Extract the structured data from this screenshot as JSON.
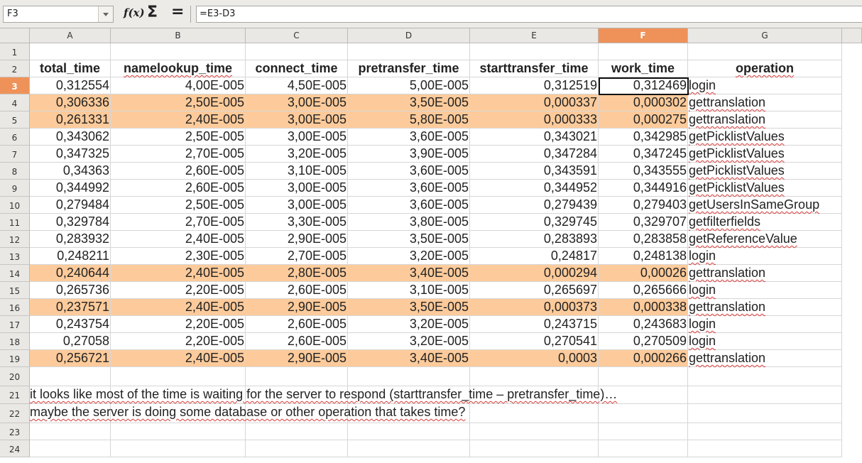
{
  "toolbar": {
    "name_box": "F3",
    "fx_label": "f(x)",
    "sum_label": "Σ",
    "equals_label": "=",
    "formula": "=E3-D3"
  },
  "columns": [
    "A",
    "B",
    "C",
    "D",
    "E",
    "F",
    "G"
  ],
  "selected_column": "F",
  "rows": [
    "1",
    "2",
    "3",
    "4",
    "5",
    "6",
    "7",
    "8",
    "9",
    "10",
    "11",
    "12",
    "13",
    "14",
    "15",
    "16",
    "17",
    "18",
    "19",
    "20",
    "21",
    "22",
    "23",
    "24"
  ],
  "selected_row": "3",
  "headers": [
    "total_time",
    "namelookup_time",
    "connect_time",
    "pretransfer_time",
    "starttransfer_time",
    "work_time",
    "operation"
  ],
  "data": [
    {
      "cells": [
        "0,312554",
        "4,00E-005",
        "4,50E-005",
        "5,00E-005",
        "0,312519",
        "0,312469",
        "login"
      ],
      "highlight": false
    },
    {
      "cells": [
        "0,306336",
        "2,50E-005",
        "3,00E-005",
        "3,50E-005",
        "0,000337",
        "0,000302",
        "gettranslation"
      ],
      "highlight": true
    },
    {
      "cells": [
        "0,261331",
        "2,40E-005",
        "3,00E-005",
        "5,80E-005",
        "0,000333",
        "0,000275",
        "gettranslation"
      ],
      "highlight": true
    },
    {
      "cells": [
        "0,343062",
        "2,50E-005",
        "3,00E-005",
        "3,60E-005",
        "0,343021",
        "0,342985",
        "getPicklistValues"
      ],
      "highlight": false
    },
    {
      "cells": [
        "0,347325",
        "2,70E-005",
        "3,20E-005",
        "3,90E-005",
        "0,347284",
        "0,347245",
        "getPicklistValues"
      ],
      "highlight": false
    },
    {
      "cells": [
        "0,34363",
        "2,60E-005",
        "3,10E-005",
        "3,60E-005",
        "0,343591",
        "0,343555",
        "getPicklistValues"
      ],
      "highlight": false
    },
    {
      "cells": [
        "0,344992",
        "2,60E-005",
        "3,00E-005",
        "3,60E-005",
        "0,344952",
        "0,344916",
        "getPicklistValues"
      ],
      "highlight": false
    },
    {
      "cells": [
        "0,279484",
        "2,50E-005",
        "3,00E-005",
        "3,60E-005",
        "0,279439",
        "0,279403",
        "getUsersInSameGroup"
      ],
      "highlight": false
    },
    {
      "cells": [
        "0,329784",
        "2,70E-005",
        "3,30E-005",
        "3,80E-005",
        "0,329745",
        "0,329707",
        "getfilterfields"
      ],
      "highlight": false
    },
    {
      "cells": [
        "0,283932",
        "2,40E-005",
        "2,90E-005",
        "3,50E-005",
        "0,283893",
        "0,283858",
        "getReferenceValue"
      ],
      "highlight": false
    },
    {
      "cells": [
        "0,248211",
        "2,30E-005",
        "2,70E-005",
        "3,20E-005",
        "0,24817",
        "0,248138",
        "login"
      ],
      "highlight": false
    },
    {
      "cells": [
        "0,240644",
        "2,40E-005",
        "2,80E-005",
        "3,40E-005",
        "0,000294",
        "0,00026",
        "gettranslation"
      ],
      "highlight": true
    },
    {
      "cells": [
        "0,265736",
        "2,20E-005",
        "2,60E-005",
        "3,10E-005",
        "0,265697",
        "0,265666",
        "login"
      ],
      "highlight": false
    },
    {
      "cells": [
        "0,237571",
        "2,40E-005",
        "2,90E-005",
        "3,50E-005",
        "0,000373",
        "0,000338",
        "gettranslation"
      ],
      "highlight": true
    },
    {
      "cells": [
        "0,243754",
        "2,20E-005",
        "2,60E-005",
        "3,20E-005",
        "0,243715",
        "0,243683",
        "login"
      ],
      "highlight": false
    },
    {
      "cells": [
        "0,27058",
        "2,20E-005",
        "2,60E-005",
        "3,20E-005",
        "0,270541",
        "0,270509",
        "login"
      ],
      "highlight": false
    },
    {
      "cells": [
        "0,256721",
        "2,40E-005",
        "2,90E-005",
        "3,40E-005",
        "0,0003",
        "0,000266",
        "gettranslation"
      ],
      "highlight": true
    }
  ],
  "notes": [
    "it looks like most of the time is waiting for the server to respond (starttransfer_time – pretransfer_time)…",
    "maybe the server is doing some database or other operation that takes time?"
  ]
}
